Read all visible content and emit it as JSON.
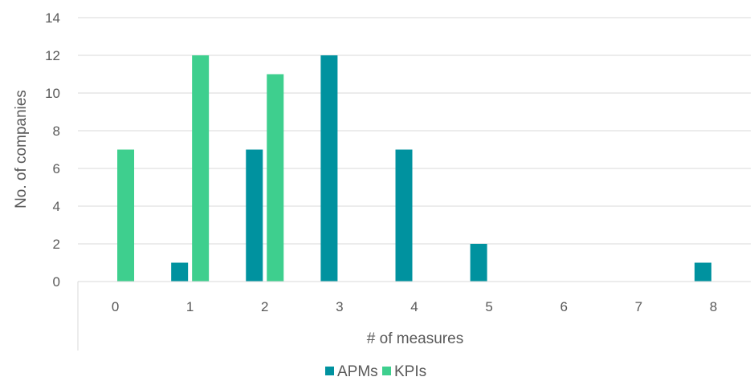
{
  "chart_data": {
    "type": "bar",
    "title": "",
    "xlabel": "# of measures",
    "ylabel": "No. of companies",
    "categories": [
      "0",
      "1",
      "2",
      "3",
      "4",
      "5",
      "6",
      "7",
      "8"
    ],
    "series": [
      {
        "name": "APMs",
        "color": "#00929f",
        "values": [
          0,
          1,
          7,
          12,
          7,
          2,
          0,
          0,
          1
        ]
      },
      {
        "name": "KPIs",
        "color": "#3ecf8e",
        "values": [
          7,
          12,
          11,
          0,
          0,
          0,
          0,
          0,
          0
        ]
      }
    ],
    "ylim": [
      0,
      14
    ],
    "yticks": [
      0,
      2,
      4,
      6,
      8,
      10,
      12,
      14
    ],
    "grid": true,
    "legend_position": "bottom"
  }
}
